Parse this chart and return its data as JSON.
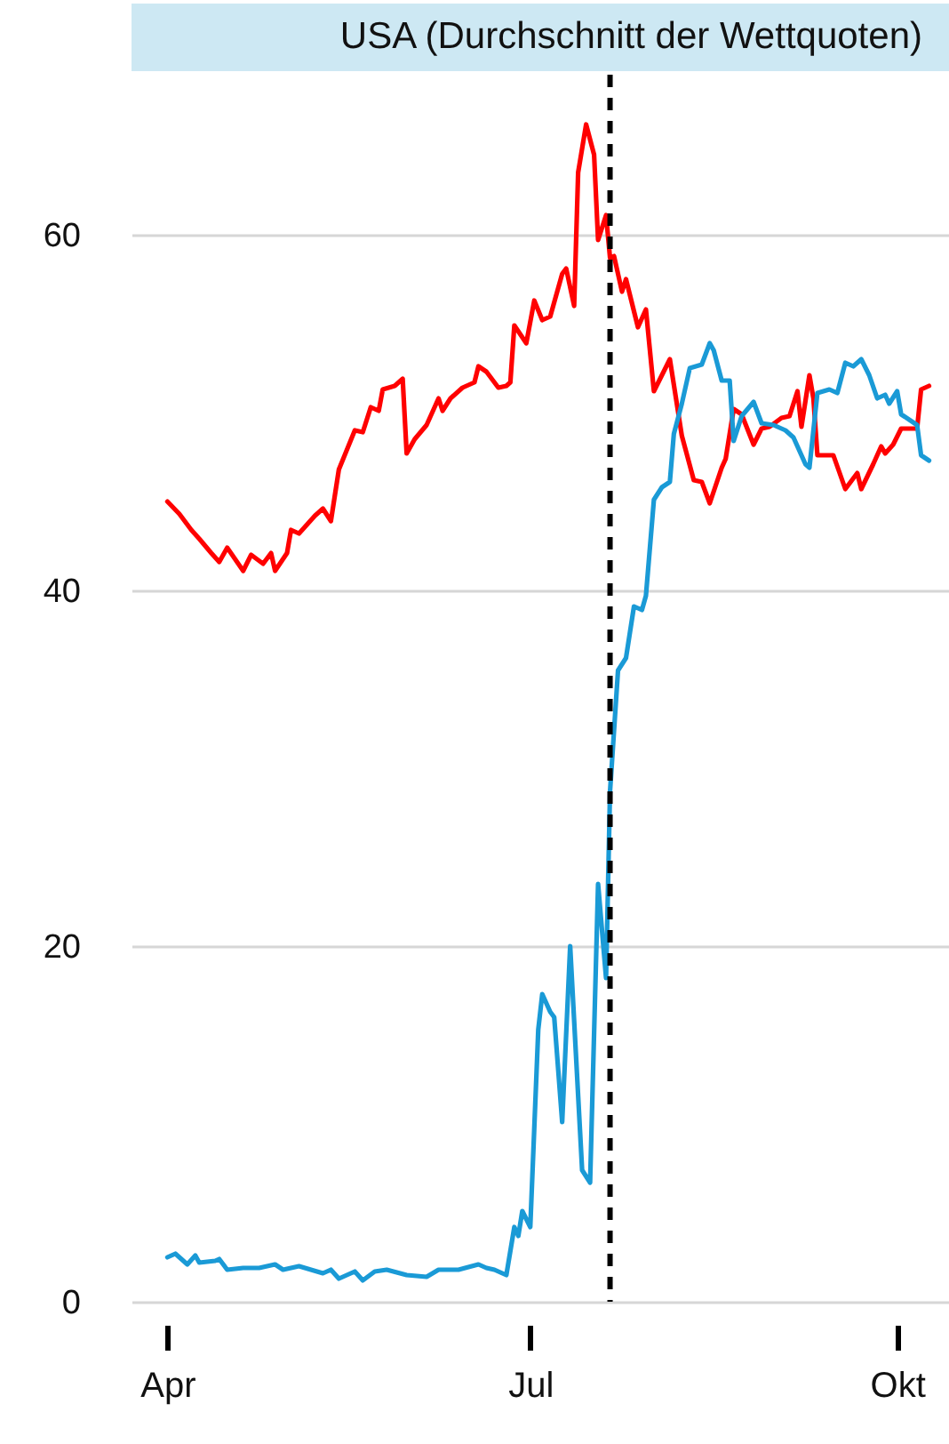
{
  "chart_data": {
    "type": "line",
    "title": "USA (Durchschnitt der Wettquoten)",
    "xlim": [
      "--03-23",
      "--10-14"
    ],
    "ylim": [
      0,
      69
    ],
    "xticks": [
      {
        "value": "--04-01",
        "label": "Apr"
      },
      {
        "value": "--07-01",
        "label": "Jul"
      },
      {
        "value": "--10-01",
        "label": "Okt"
      }
    ],
    "yticks": [
      0,
      20,
      40,
      60
    ],
    "grid": "y",
    "line_style": "solid",
    "marker": "none",
    "ref_lines": [
      {
        "axis": "x",
        "value": "--07-21",
        "color": "#000000",
        "line_style": "dashed"
      }
    ],
    "series": [
      {
        "color": "#ff0000",
        "x": [
          "--04-01",
          "--04-04",
          "--04-07",
          "--04-09",
          "--04-12",
          "--04-14",
          "--04-16",
          "--04-20",
          "--04-22",
          "--04-25",
          "--04-27",
          "--04-28",
          "--05-01",
          "--05-02",
          "--05-04",
          "--05-08",
          "--05-10",
          "--05-12",
          "--05-14",
          "--05-18",
          "--05-20",
          "--05-22",
          "--05-24",
          "--05-25",
          "--05-28",
          "--05-30",
          "--05-31",
          "--06-02",
          "--06-05",
          "--06-08",
          "--06-09",
          "--06-11",
          "--06-14",
          "--06-17",
          "--06-18",
          "--06-20",
          "--06-23",
          "--06-25",
          "--06-26",
          "--06-27",
          "--06-30",
          "--07-02",
          "--07-04",
          "--07-06",
          "--07-09",
          "--07-10",
          "--07-12",
          "--07-13",
          "--07-15",
          "--07-17",
          "--07-18",
          "--07-20",
          "--07-21",
          "--07-22",
          "--07-24",
          "--07-25",
          "--07-28",
          "--07-30",
          "--08-01",
          "--08-05",
          "--08-08",
          "--08-11",
          "--08-13",
          "--08-15",
          "--08-18",
          "--08-19",
          "--08-21",
          "--08-23",
          "--08-26",
          "--08-28",
          "--08-30",
          "--09-02",
          "--09-04",
          "--09-06",
          "--09-07",
          "--09-09",
          "--09-10",
          "--09-11",
          "--09-15",
          "--09-18",
          "--09-21",
          "--09-22",
          "--09-25",
          "--09-27",
          "--09-28",
          "--09-30",
          "--10-02",
          "--10-06",
          "--10-07",
          "--10-09"
        ],
        "values": [
          45.0,
          44.3,
          43.4,
          42.9,
          42.1,
          41.6,
          42.4,
          41.1,
          42.0,
          41.5,
          42.1,
          41.1,
          42.1,
          43.4,
          43.2,
          44.2,
          44.6,
          43.9,
          46.8,
          49.0,
          48.9,
          50.3,
          50.1,
          51.3,
          51.5,
          51.9,
          47.7,
          48.5,
          49.3,
          50.8,
          50.1,
          50.8,
          51.4,
          51.7,
          52.6,
          52.3,
          51.4,
          51.5,
          51.7,
          54.9,
          53.9,
          56.3,
          55.2,
          55.4,
          57.8,
          58.1,
          56.0,
          63.5,
          66.2,
          64.5,
          59.7,
          61.1,
          58.7,
          58.8,
          56.8,
          57.5,
          54.8,
          55.8,
          51.2,
          53.0,
          48.7,
          46.2,
          46.1,
          44.9,
          46.9,
          47.4,
          50.2,
          49.9,
          48.2,
          49.1,
          49.2,
          49.7,
          49.8,
          51.2,
          49.2,
          52.1,
          50.8,
          47.6,
          47.6,
          45.7,
          46.6,
          45.7,
          47.1,
          48.1,
          47.7,
          48.2,
          49.1,
          49.1,
          51.3,
          51.5
        ]
      },
      {
        "color": "#1a9ad6",
        "x": [
          "--04-01",
          "--04-03",
          "--04-06",
          "--04-08",
          "--04-09",
          "--04-13",
          "--04-14",
          "--04-16",
          "--04-20",
          "--04-24",
          "--04-28",
          "--04-30",
          "--05-04",
          "--05-10",
          "--05-12",
          "--05-14",
          "--05-18",
          "--05-20",
          "--05-23",
          "--05-26",
          "--05-31",
          "--06-05",
          "--06-08",
          "--06-13",
          "--06-18",
          "--06-20",
          "--06-22",
          "--06-25",
          "--06-27",
          "--06-28",
          "--06-29",
          "--07-01",
          "--07-03",
          "--07-04",
          "--07-06",
          "--07-07",
          "--07-09",
          "--07-11",
          "--07-14",
          "--07-16",
          "--07-18",
          "--07-20",
          "--07-21",
          "--07-23",
          "--07-25",
          "--07-27",
          "--07-29",
          "--07-30",
          "--08-01",
          "--08-03",
          "--08-05",
          "--08-06",
          "--08-08",
          "--08-10",
          "--08-13",
          "--08-15",
          "--08-16",
          "--08-18",
          "--08-20",
          "--08-21",
          "--08-23",
          "--08-26",
          "--08-28",
          "--08-31",
          "--09-03",
          "--09-05",
          "--09-08",
          "--09-09",
          "--09-11",
          "--09-14",
          "--09-16",
          "--09-18",
          "--09-20",
          "--09-22",
          "--09-24",
          "--09-26",
          "--09-28",
          "--09-29",
          "--10-01",
          "--10-02",
          "--10-06",
          "--10-07",
          "--10-09"
        ],
        "values": [
          2.5,
          2.7,
          2.1,
          2.6,
          2.2,
          2.3,
          2.4,
          1.8,
          1.9,
          1.9,
          2.1,
          1.8,
          2.0,
          1.6,
          1.8,
          1.3,
          1.7,
          1.2,
          1.7,
          1.8,
          1.5,
          1.4,
          1.8,
          1.8,
          2.1,
          1.9,
          1.8,
          1.5,
          4.2,
          3.7,
          5.1,
          4.2,
          15.3,
          17.3,
          16.3,
          16.0,
          10.1,
          20.0,
          7.4,
          6.7,
          23.5,
          18.2,
          28.7,
          35.5,
          36.2,
          39.1,
          38.9,
          39.7,
          45.1,
          45.8,
          46.1,
          48.8,
          50.5,
          52.5,
          52.7,
          53.9,
          53.5,
          51.8,
          51.8,
          48.4,
          49.8,
          50.6,
          49.4,
          49.3,
          49.0,
          48.6,
          47.1,
          46.9,
          51.1,
          51.3,
          51.1,
          52.8,
          52.6,
          53.0,
          52.1,
          50.8,
          51.0,
          50.5,
          51.2,
          49.9,
          49.3,
          47.6,
          47.3
        ]
      }
    ]
  }
}
